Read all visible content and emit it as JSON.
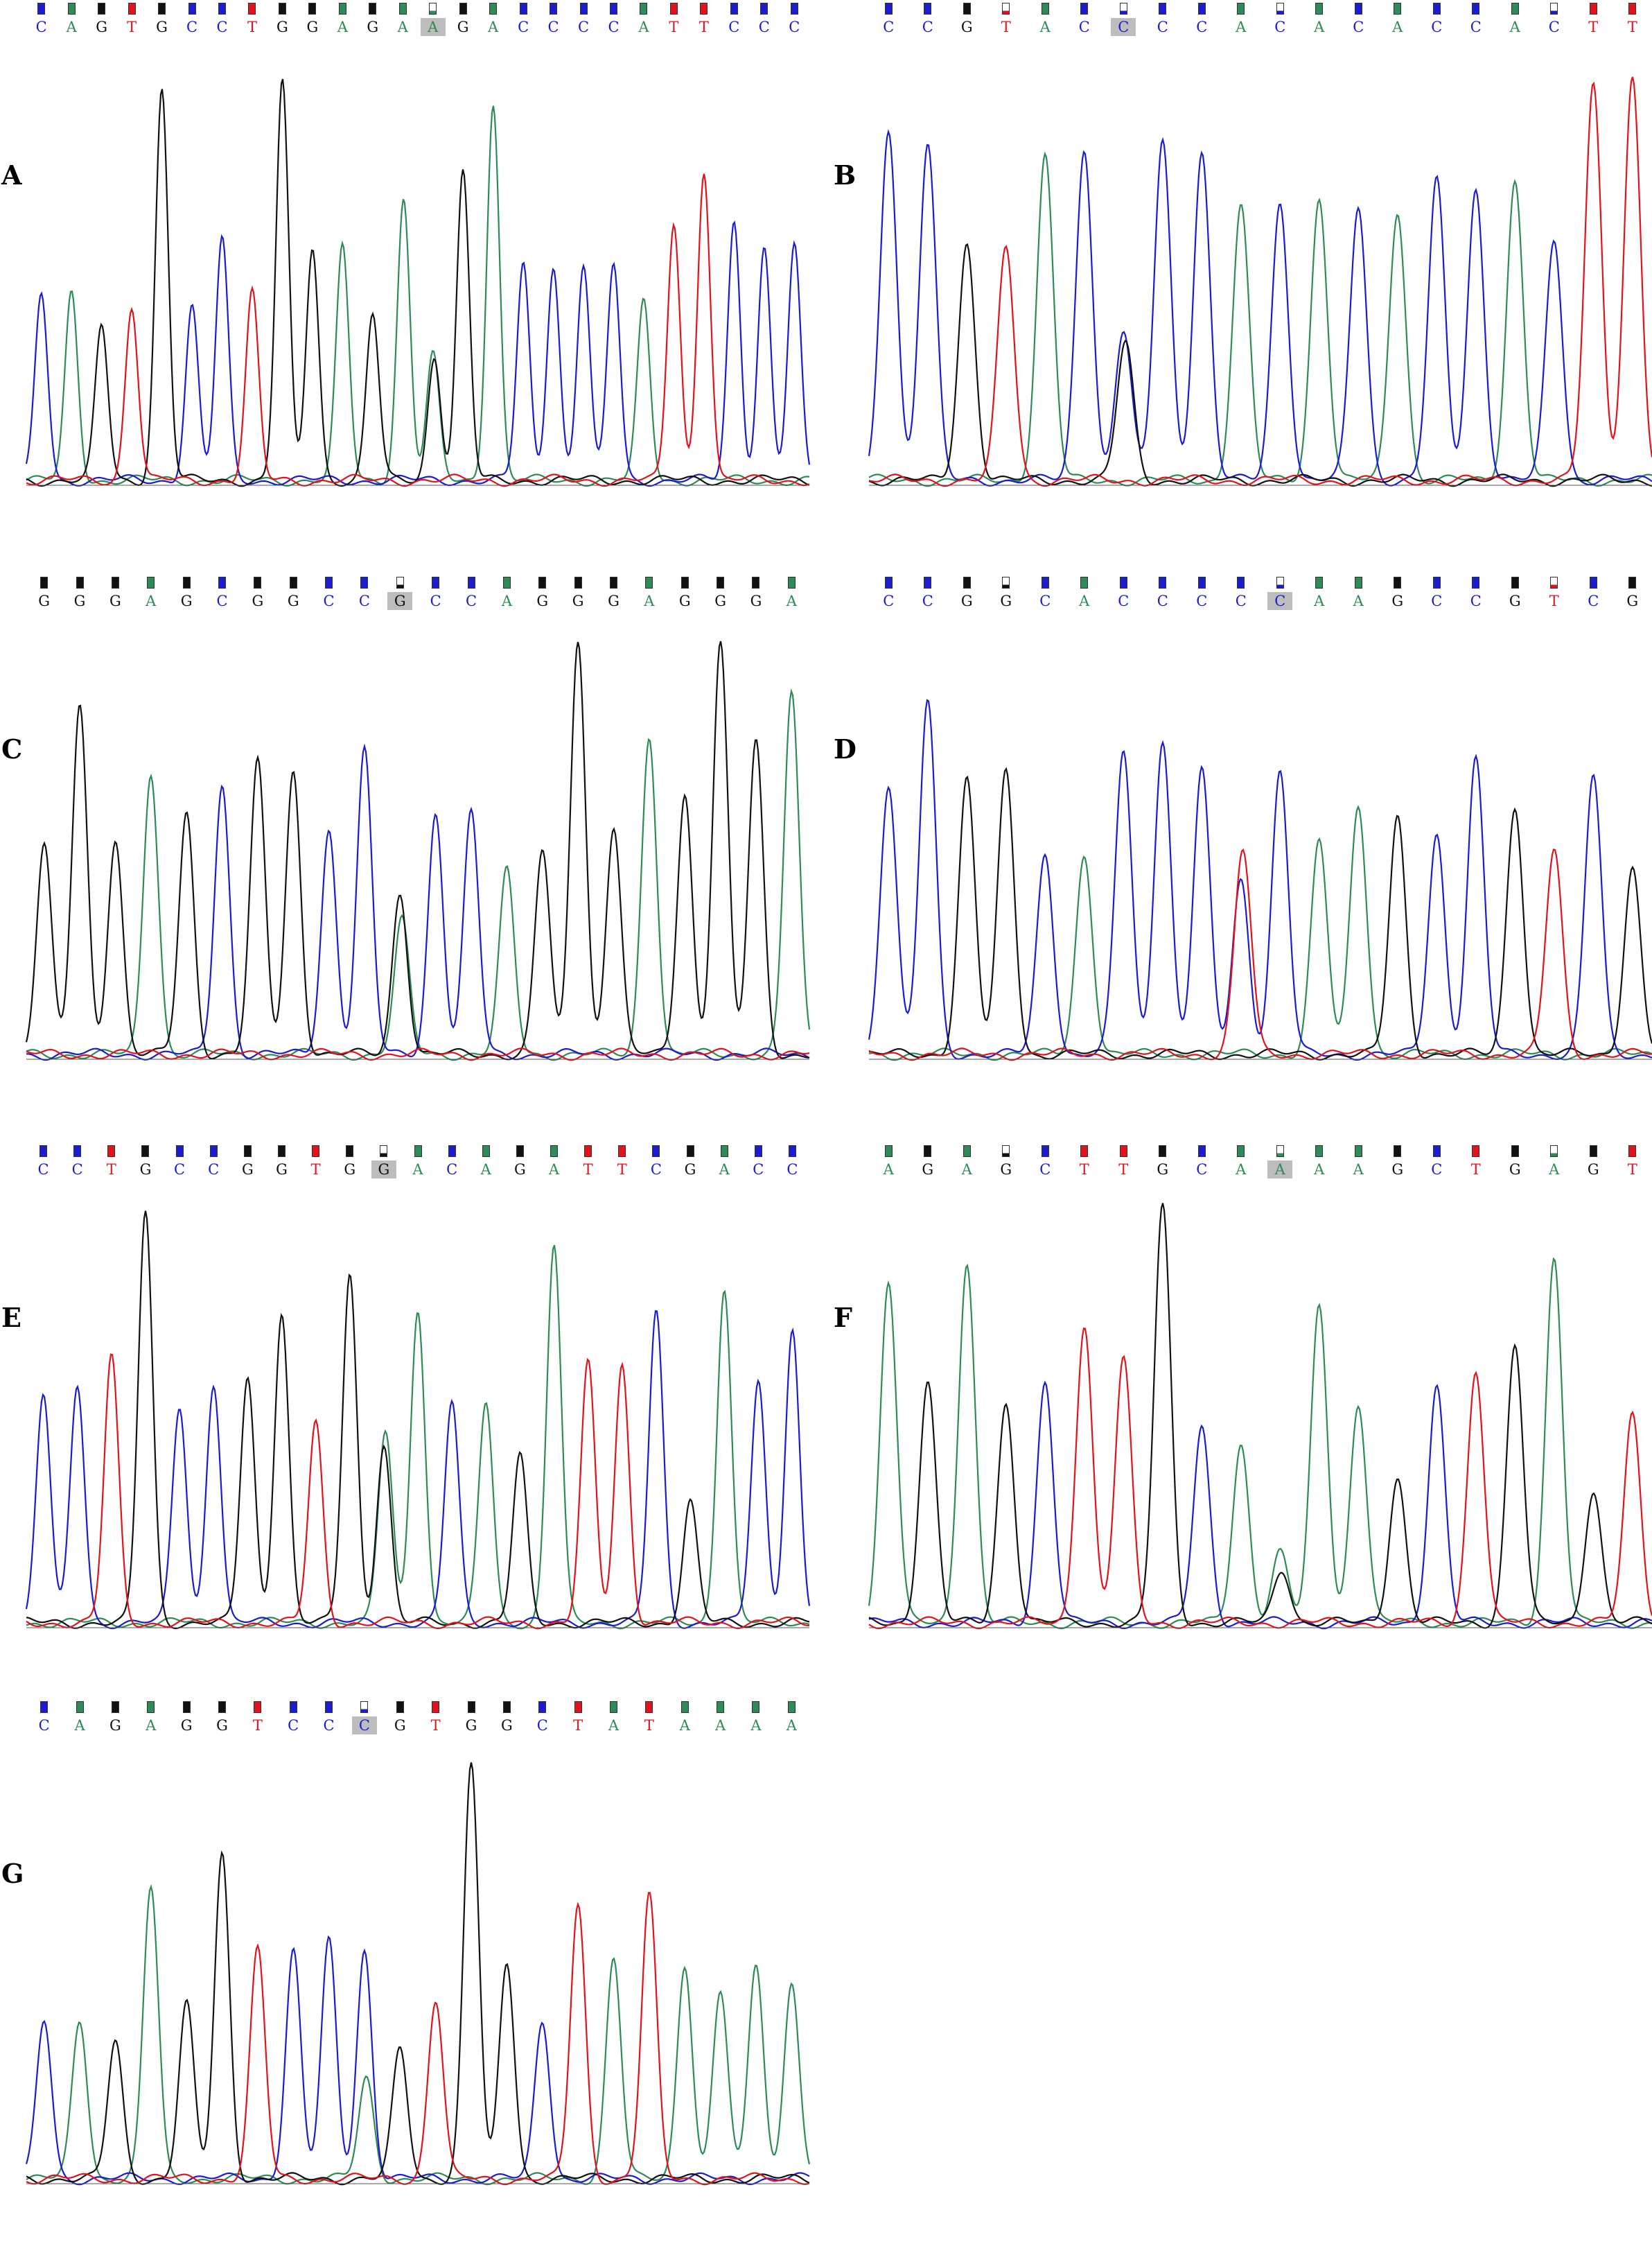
{
  "colors": {
    "A": "#2e8b57",
    "C": "#1c1ccf",
    "G": "#111111",
    "T": "#e0141c",
    "highlight": "#bdbdbd"
  },
  "panels": [
    {
      "label": "A",
      "col": 0,
      "row": 0,
      "highlight": 13,
      "seq": [
        "C",
        "A",
        "G",
        "T",
        "G",
        "C",
        "C",
        "T",
        "G",
        "G",
        "A",
        "G",
        "A",
        "A",
        "G",
        "A",
        "C",
        "C",
        "C",
        "C",
        "A",
        "T",
        "T",
        "C",
        "C",
        "C"
      ],
      "heights": [
        0.45,
        0.45,
        0.37,
        0.42,
        0.94,
        0.42,
        0.58,
        0.45,
        0.96,
        0.56,
        0.56,
        0.4,
        0.33,
        0.3,
        0.74,
        0.91,
        0.52,
        0.52,
        0.52,
        0.52,
        0.43,
        0.62,
        0.75,
        0.62,
        0.56,
        0.56
      ],
      "minors": [
        {
          "i": 12,
          "b": "A",
          "h": 0.35
        },
        {
          "i": 13,
          "b": "G",
          "h": 0.3
        }
      ]
    },
    {
      "label": "B",
      "col": 1,
      "row": 0,
      "highlight": 6,
      "seq": [
        "C",
        "C",
        "G",
        "T",
        "A",
        "C",
        "C",
        "C",
        "C",
        "A",
        "C",
        "A",
        "C",
        "A",
        "C",
        "C",
        "A",
        "C",
        "T",
        "T"
      ],
      "heights": [
        0.85,
        0.81,
        0.57,
        0.56,
        0.78,
        0.8,
        0.36,
        0.82,
        0.79,
        0.66,
        0.67,
        0.68,
        0.66,
        0.65,
        0.72,
        0.7,
        0.72,
        0.58,
        0.95,
        0.97
      ],
      "minors": [
        {
          "i": 6,
          "b": "G",
          "h": 0.33
        }
      ]
    },
    {
      "label": "C",
      "col": 0,
      "row": 1,
      "highlight": 10,
      "seq": [
        "G",
        "G",
        "G",
        "A",
        "G",
        "C",
        "G",
        "G",
        "C",
        "C",
        "G",
        "C",
        "C",
        "A",
        "G",
        "G",
        "G",
        "A",
        "G",
        "G",
        "G",
        "A"
      ],
      "heights": [
        0.51,
        0.84,
        0.52,
        0.68,
        0.58,
        0.65,
        0.7,
        0.68,
        0.54,
        0.73,
        0.39,
        0.58,
        0.58,
        0.44,
        0.49,
        1.0,
        0.55,
        0.77,
        0.63,
        0.99,
        0.75,
        0.87
      ],
      "minors": [
        {
          "i": 10,
          "b": "A",
          "h": 0.32
        }
      ]
    },
    {
      "label": "D",
      "col": 1,
      "row": 1,
      "highlight": 10,
      "seq": [
        "C",
        "C",
        "G",
        "G",
        "C",
        "A",
        "C",
        "C",
        "C",
        "C",
        "C",
        "A",
        "A",
        "G",
        "C",
        "C",
        "G",
        "T",
        "C",
        "G"
      ],
      "heights": [
        0.65,
        0.85,
        0.66,
        0.68,
        0.48,
        0.48,
        0.73,
        0.76,
        0.68,
        0.42,
        0.68,
        0.51,
        0.6,
        0.57,
        0.53,
        0.71,
        0.6,
        0.49,
        0.67,
        0.45
      ],
      "minors": [
        {
          "i": 9,
          "b": "T",
          "h": 0.49
        }
      ]
    },
    {
      "label": "E",
      "col": 0,
      "row": 2,
      "highlight": 10,
      "seq": [
        "C",
        "C",
        "T",
        "G",
        "C",
        "C",
        "G",
        "G",
        "T",
        "G",
        "G",
        "A",
        "C",
        "A",
        "G",
        "A",
        "T",
        "T",
        "C",
        "G",
        "A",
        "C",
        "C"
      ],
      "heights": [
        0.55,
        0.57,
        0.64,
        0.99,
        0.52,
        0.58,
        0.59,
        0.75,
        0.48,
        0.84,
        0.43,
        0.76,
        0.53,
        0.53,
        0.4,
        0.91,
        0.62,
        0.62,
        0.75,
        0.29,
        0.81,
        0.58,
        0.71
      ],
      "minors": [
        {
          "i": 10,
          "b": "A",
          "h": 0.46
        }
      ]
    },
    {
      "label": "F",
      "col": 1,
      "row": 2,
      "highlight": 10,
      "seq": [
        "A",
        "G",
        "A",
        "G",
        "C",
        "T",
        "T",
        "G",
        "C",
        "A",
        "A",
        "A",
        "A",
        "G",
        "C",
        "T",
        "G",
        "A",
        "G",
        "T"
      ],
      "heights": [
        0.82,
        0.58,
        0.87,
        0.53,
        0.58,
        0.72,
        0.63,
        1.0,
        0.47,
        0.43,
        0.17,
        0.76,
        0.53,
        0.35,
        0.57,
        0.61,
        0.67,
        0.88,
        0.32,
        0.5
      ],
      "minors": [
        {
          "i": 10,
          "b": "G",
          "h": 0.13
        }
      ]
    },
    {
      "label": "G",
      "col": 0,
      "row": 3,
      "highlight": 9,
      "seq": [
        "C",
        "A",
        "G",
        "A",
        "G",
        "G",
        "T",
        "C",
        "C",
        "C",
        "G",
        "T",
        "G",
        "G",
        "C",
        "T",
        "A",
        "T",
        "A",
        "A",
        "A",
        "A"
      ],
      "heights": [
        0.38,
        0.38,
        0.33,
        0.7,
        0.42,
        0.78,
        0.55,
        0.55,
        0.57,
        0.55,
        0.31,
        0.43,
        1.0,
        0.52,
        0.38,
        0.66,
        0.53,
        0.68,
        0.52,
        0.45,
        0.52,
        0.48
      ],
      "minors": [
        {
          "i": 9,
          "b": "A",
          "h": 0.24
        }
      ]
    }
  ]
}
